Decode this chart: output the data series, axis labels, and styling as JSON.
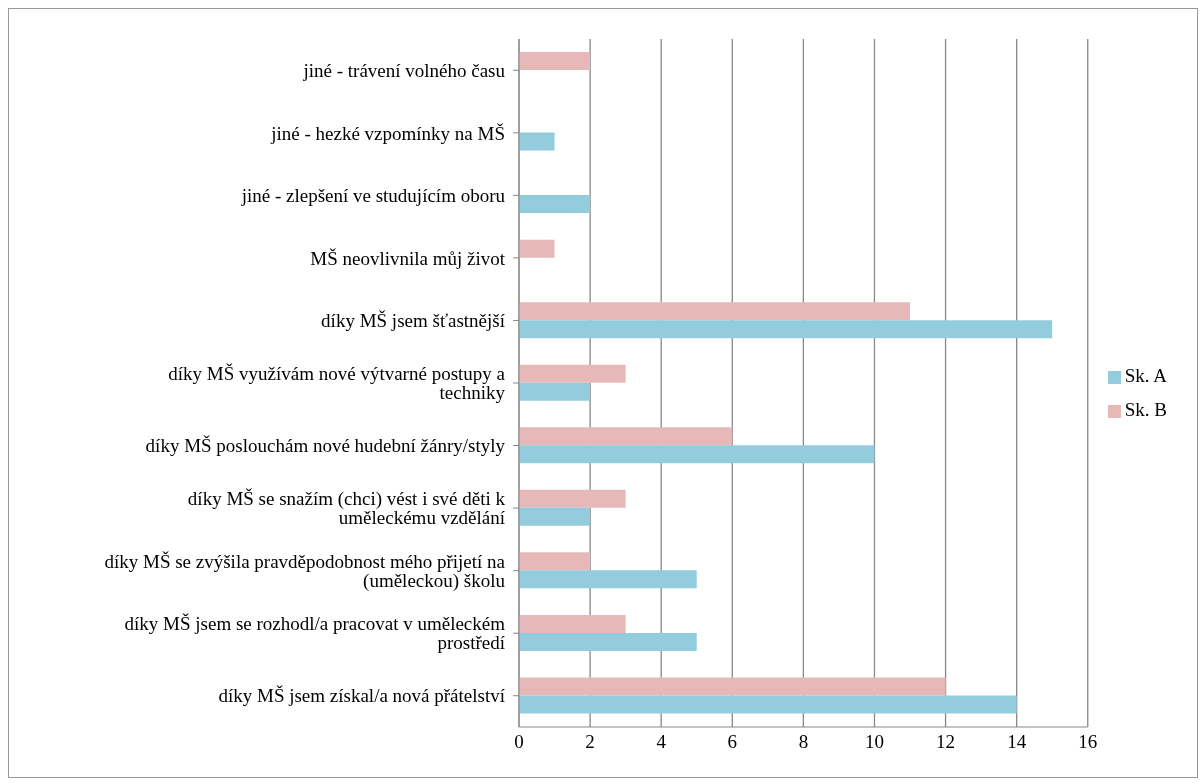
{
  "chart_data": {
    "type": "bar",
    "orientation": "horizontal",
    "categories": [
      "jiné - trávení volného času",
      "jiné - hezké vzpomínky na MŠ",
      "jiné - zlepšení ve studujícím oboru",
      "MŠ neovlivnila můj život",
      "díky MŠ jsem šťastnější",
      "díky MŠ využívám nové výtvarné postupy a techniky",
      "díky MŠ poslouchám nové hudební žánry/styly",
      "díky MŠ se snažím (chci) vést i své děti k uměleckému vzdělání",
      "díky MŠ se zvýšila pravděpodobnost mého přijetí na (uměleckou) školu",
      "díky MŠ jsem se rozhodl/a pracovat v uměleckém prostředí",
      "díky MŠ jsem získal/a nová přátelství"
    ],
    "series": [
      {
        "name": "Sk. B",
        "color": "#e6b9b8",
        "values": [
          2,
          null,
          null,
          1,
          11,
          3,
          6,
          3,
          2,
          3,
          12
        ]
      },
      {
        "name": "Sk. A",
        "color": "#93cddd",
        "values": [
          null,
          1,
          2,
          null,
          15,
          2,
          10,
          2,
          5,
          5,
          14
        ]
      }
    ],
    "xlim": [
      0,
      16
    ],
    "xticks": [
      0,
      2,
      4,
      6,
      8,
      10,
      12,
      14,
      16
    ],
    "grid": "x",
    "legend": "right"
  }
}
